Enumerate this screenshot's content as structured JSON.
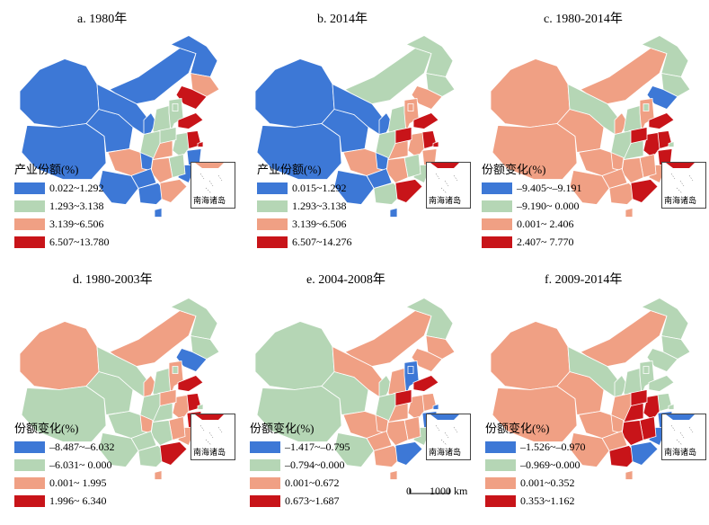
{
  "colors": {
    "blue": "#3d78d6",
    "green": "#b5d6b5",
    "salmon": "#f0a084",
    "red": "#c81419",
    "border": "#ffffff"
  },
  "inset_label": "南海诸岛",
  "scale": {
    "zero": "0",
    "distance": "1000 km"
  },
  "panels": [
    {
      "title": "a. 1980年",
      "legend_title": "产业份额(%)",
      "legend": [
        {
          "label": "0.022~1.292",
          "color": "#3d78d6"
        },
        {
          "label": "1.293~3.138",
          "color": "#b5d6b5"
        },
        {
          "label": "3.139~6.506",
          "color": "#f0a084"
        },
        {
          "label": "6.507~13.780",
          "color": "#c81419"
        }
      ],
      "regions": {
        "xj": "#3d78d6",
        "xz": "#3d78d6",
        "qh": "#3d78d6",
        "gs": "#3d78d6",
        "nm": "#3d78d6",
        "hlj": "#3d78d6",
        "jl": "#f0a084",
        "ln": "#c81419",
        "nx": "#3d78d6",
        "sx": "#b5d6b5",
        "hb": "#b5d6b5",
        "bj": "#b5d6b5",
        "sd": "#c81419",
        "js": "#c81419",
        "sh": "#c81419",
        "ah": "#b5d6b5",
        "zj": "#3d78d6",
        "fj": "#3d78d6",
        "jx": "#b5d6b5",
        "hun": "#f0a084",
        "hub": "#f0a084",
        "hen": "#b5d6b5",
        "shx": "#b5d6b5",
        "sc": "#f0a084",
        "cq": "#3d78d6",
        "gz": "#3d78d6",
        "yn": "#3d78d6",
        "gx": "#3d78d6",
        "gd": "#f0a084",
        "hi": "#3d78d6",
        "tw": "#f0a084"
      }
    },
    {
      "title": "b. 2014年",
      "legend_title": "产业份额(%)",
      "legend": [
        {
          "label": "0.015~1.292",
          "color": "#3d78d6"
        },
        {
          "label": "1.293~3.138",
          "color": "#b5d6b5"
        },
        {
          "label": "3.139~6.506",
          "color": "#f0a084"
        },
        {
          "label": "6.507~14.276",
          "color": "#c81419"
        }
      ],
      "regions": {
        "xj": "#3d78d6",
        "xz": "#3d78d6",
        "qh": "#3d78d6",
        "gs": "#3d78d6",
        "nm": "#b5d6b5",
        "hlj": "#b5d6b5",
        "jl": "#b5d6b5",
        "ln": "#f0a084",
        "nx": "#3d78d6",
        "sx": "#b5d6b5",
        "hb": "#f0a084",
        "bj": "#f0a084",
        "sd": "#c81419",
        "js": "#c81419",
        "sh": "#c81419",
        "ah": "#f0a084",
        "zj": "#f0a084",
        "fj": "#b5d6b5",
        "jx": "#b5d6b5",
        "hun": "#f0a084",
        "hub": "#f0a084",
        "hen": "#c81419",
        "shx": "#b5d6b5",
        "sc": "#f0a084",
        "cq": "#3d78d6",
        "gz": "#3d78d6",
        "yn": "#3d78d6",
        "gx": "#b5d6b5",
        "gd": "#c81419",
        "hi": "#3d78d6",
        "tw": "#c81419"
      }
    },
    {
      "title": "c. 1980-2014年",
      "legend_title": "份额变化(%)",
      "legend": [
        {
          "label": "–9.405~–9.191",
          "color": "#3d78d6"
        },
        {
          "label": "–9.190~ 0.000",
          "color": "#b5d6b5"
        },
        {
          "label": "0.001~ 2.406",
          "color": "#f0a084"
        },
        {
          "label": "2.407~ 7.770",
          "color": "#c81419"
        }
      ],
      "regions": {
        "xj": "#f0a084",
        "xz": "#f0a084",
        "qh": "#f0a084",
        "gs": "#b5d6b5",
        "nm": "#f0a084",
        "hlj": "#b5d6b5",
        "jl": "#b5d6b5",
        "ln": "#3d78d6",
        "nx": "#f0a084",
        "sx": "#b5d6b5",
        "hb": "#f0a084",
        "bj": "#b5d6b5",
        "sd": "#c81419",
        "js": "#c81419",
        "sh": "#b5d6b5",
        "ah": "#c81419",
        "zj": "#c81419",
        "fj": "#f0a084",
        "jx": "#f0a084",
        "hun": "#f0a084",
        "hub": "#b5d6b5",
        "hen": "#c81419",
        "shx": "#b5d6b5",
        "sc": "#f0a084",
        "cq": "#f0a084",
        "gz": "#f0a084",
        "yn": "#f0a084",
        "gx": "#f0a084",
        "gd": "#c81419",
        "hi": "#f0a084",
        "tw": "#c81419"
      }
    },
    {
      "title": "d. 1980-2003年",
      "legend_title": "份额变化(%)",
      "legend": [
        {
          "label": "–8.487~–6.032",
          "color": "#3d78d6"
        },
        {
          "label": "–6.031~ 0.000",
          "color": "#b5d6b5"
        },
        {
          "label": "0.001~ 1.995",
          "color": "#f0a084"
        },
        {
          "label": "1.996~ 6.340",
          "color": "#c81419"
        }
      ],
      "regions": {
        "xj": "#f0a084",
        "xz": "#b5d6b5",
        "qh": "#b5d6b5",
        "gs": "#b5d6b5",
        "nm": "#f0a084",
        "hlj": "#b5d6b5",
        "jl": "#b5d6b5",
        "ln": "#3d78d6",
        "nx": "#f0a084",
        "sx": "#b5d6b5",
        "hb": "#f0a084",
        "bj": "#b5d6b5",
        "sd": "#c81419",
        "js": "#c81419",
        "sh": "#b5d6b5",
        "ah": "#f0a084",
        "zj": "#c81419",
        "fj": "#f0a084",
        "jx": "#f0a084",
        "hun": "#b5d6b5",
        "hub": "#b5d6b5",
        "hen": "#f0a084",
        "shx": "#b5d6b5",
        "sc": "#b5d6b5",
        "cq": "#f0a084",
        "gz": "#b5d6b5",
        "yn": "#b5d6b5",
        "gx": "#b5d6b5",
        "gd": "#c81419",
        "hi": "#f0a084",
        "tw": "#c81419"
      }
    },
    {
      "title": "e. 2004-2008年",
      "legend_title": "份额变化(%)",
      "legend": [
        {
          "label": "–1.417~–0.795",
          "color": "#3d78d6"
        },
        {
          "label": "–0.794~0.000",
          "color": "#b5d6b5"
        },
        {
          "label": "0.001~0.672",
          "color": "#f0a084"
        },
        {
          "label": "0.673~1.687",
          "color": "#c81419"
        }
      ],
      "regions": {
        "xj": "#b5d6b5",
        "xz": "#b5d6b5",
        "qh": "#b5d6b5",
        "gs": "#f0a084",
        "nm": "#f0a084",
        "hlj": "#b5d6b5",
        "jl": "#f0a084",
        "ln": "#f0a084",
        "nx": "#b5d6b5",
        "sx": "#f0a084",
        "hb": "#3d78d6",
        "bj": "#3d78d6",
        "sd": "#c81419",
        "js": "#f0a084",
        "sh": "#3d78d6",
        "ah": "#f0a084",
        "zj": "#3d78d6",
        "fj": "#b5d6b5",
        "jx": "#f0a084",
        "hun": "#f0a084",
        "hub": "#f0a084",
        "hen": "#c81419",
        "shx": "#b5d6b5",
        "sc": "#f0a084",
        "cq": "#f0a084",
        "gz": "#f0a084",
        "yn": "#b5d6b5",
        "gx": "#f0a084",
        "gd": "#3d78d6",
        "hi": "#f0a084",
        "tw": "#f0a084"
      }
    },
    {
      "title": "f. 2009-2014年",
      "legend_title": "份额变化(%)",
      "legend": [
        {
          "label": "–1.526~–0.970",
          "color": "#3d78d6"
        },
        {
          "label": "–0.969~0.000",
          "color": "#b5d6b5"
        },
        {
          "label": "0.001~0.352",
          "color": "#f0a084"
        },
        {
          "label": "0.353~1.162",
          "color": "#c81419"
        }
      ],
      "regions": {
        "xj": "#f0a084",
        "xz": "#f0a084",
        "qh": "#f0a084",
        "gs": "#b5d6b5",
        "nm": "#f0a084",
        "hlj": "#b5d6b5",
        "jl": "#b5d6b5",
        "ln": "#b5d6b5",
        "nx": "#b5d6b5",
        "sx": "#b5d6b5",
        "hb": "#b5d6b5",
        "bj": "#b5d6b5",
        "sd": "#b5d6b5",
        "js": "#b5d6b5",
        "sh": "#b5d6b5",
        "ah": "#c81419",
        "zj": "#3d78d6",
        "fj": "#3d78d6",
        "jx": "#c81419",
        "hun": "#c81419",
        "hub": "#c81419",
        "hen": "#c81419",
        "shx": "#f0a084",
        "sc": "#f0a084",
        "cq": "#f0a084",
        "gz": "#f0a084",
        "yn": "#f0a084",
        "gx": "#c81419",
        "gd": "#3d78d6",
        "hi": "#f0a084",
        "tw": "#3d78d6"
      }
    }
  ]
}
